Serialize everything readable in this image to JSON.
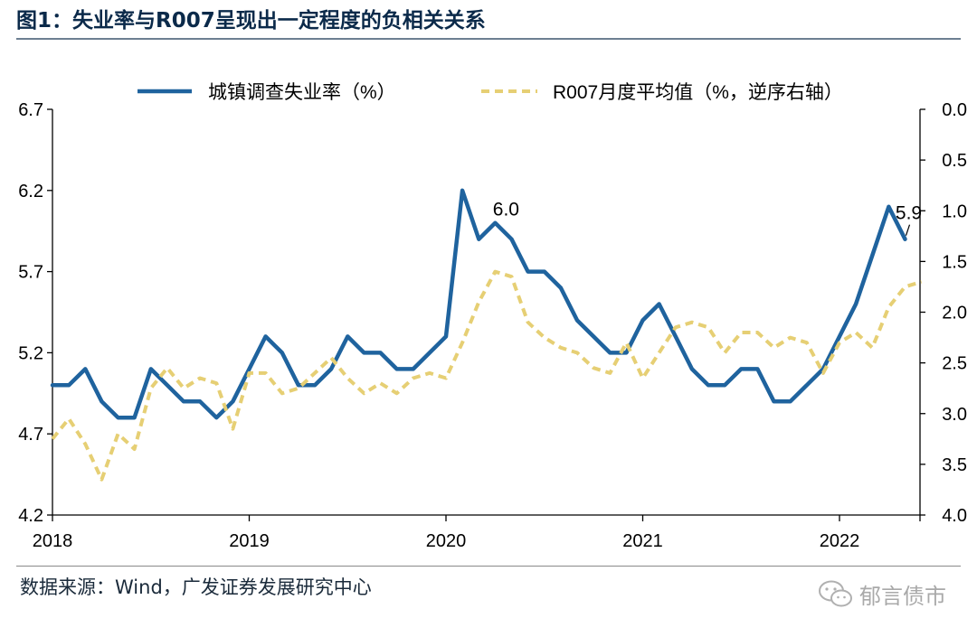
{
  "header": {
    "title": "图1：失业率与R007呈现出一定程度的负相关关系"
  },
  "footer": {
    "source": "数据来源：Wind，广发证券发展研究中心",
    "watermark": "郁言债市",
    "watermark_icon": "wechat-icon"
  },
  "colors": {
    "unemployment": "#1f639e",
    "r007": "#e6cf74",
    "title": "#0b2a4a"
  },
  "chart_data": {
    "type": "line",
    "legend_position": "top",
    "grid": false,
    "x_tick_labels": [
      "2018",
      "2019",
      "2020",
      "2021",
      "2022"
    ],
    "y_left": {
      "range": [
        4.2,
        6.7
      ],
      "tick_labels": [
        "6.7",
        "6.2",
        "5.7",
        "5.2",
        "4.7",
        "4.2"
      ]
    },
    "y_right": {
      "range": [
        0.0,
        4.0
      ],
      "inverted": true,
      "tick_labels": [
        "0.0",
        "0.5",
        "1.0",
        "1.5",
        "2.0",
        "2.5",
        "3.0",
        "3.5",
        "4.0"
      ]
    },
    "series": [
      {
        "name": "城镇调查失业率（%）",
        "axis": "left",
        "style": "solid",
        "x": [
          "2018-01",
          "2018-02",
          "2018-03",
          "2018-04",
          "2018-05",
          "2018-06",
          "2018-07",
          "2018-08",
          "2018-09",
          "2018-10",
          "2018-11",
          "2018-12",
          "2019-01",
          "2019-02",
          "2019-03",
          "2019-04",
          "2019-05",
          "2019-06",
          "2019-07",
          "2019-08",
          "2019-09",
          "2019-10",
          "2019-11",
          "2019-12",
          "2020-01",
          "2020-02",
          "2020-03",
          "2020-04",
          "2020-05",
          "2020-06",
          "2020-07",
          "2020-08",
          "2020-09",
          "2020-10",
          "2020-11",
          "2020-12",
          "2021-01",
          "2021-02",
          "2021-03",
          "2021-04",
          "2021-05",
          "2021-06",
          "2021-07",
          "2021-08",
          "2021-09",
          "2021-10",
          "2021-11",
          "2021-12",
          "2022-01",
          "2022-02",
          "2022-03",
          "2022-04",
          "2022-05"
        ],
        "values": [
          5.0,
          5.0,
          5.1,
          4.9,
          4.8,
          4.8,
          5.1,
          5.0,
          4.9,
          4.9,
          4.8,
          4.9,
          5.1,
          5.3,
          5.2,
          5.0,
          5.0,
          5.1,
          5.3,
          5.2,
          5.2,
          5.1,
          5.1,
          5.2,
          5.3,
          6.2,
          5.9,
          6.0,
          5.9,
          5.7,
          5.7,
          5.6,
          5.4,
          5.3,
          5.2,
          5.2,
          5.4,
          5.5,
          5.3,
          5.1,
          5.0,
          5.0,
          5.1,
          5.1,
          4.9,
          4.9,
          5.0,
          5.1,
          5.3,
          5.5,
          5.8,
          6.1,
          5.9
        ]
      },
      {
        "name": "R007月度平均值（%，逆序右轴）",
        "axis": "right",
        "style": "dashed",
        "x": [
          "2018-01",
          "2018-02",
          "2018-03",
          "2018-04",
          "2018-05",
          "2018-06",
          "2018-07",
          "2018-08",
          "2018-09",
          "2018-10",
          "2018-11",
          "2018-12",
          "2019-01",
          "2019-02",
          "2019-03",
          "2019-04",
          "2019-05",
          "2019-06",
          "2019-07",
          "2019-08",
          "2019-09",
          "2019-10",
          "2019-11",
          "2019-12",
          "2020-01",
          "2020-02",
          "2020-03",
          "2020-04",
          "2020-05",
          "2020-06",
          "2020-07",
          "2020-08",
          "2020-09",
          "2020-10",
          "2020-11",
          "2020-12",
          "2021-01",
          "2021-02",
          "2021-03",
          "2021-04",
          "2021-05",
          "2021-06",
          "2021-07",
          "2021-08",
          "2021-09",
          "2021-10",
          "2021-11",
          "2021-12",
          "2022-01",
          "2022-02",
          "2022-03",
          "2022-04",
          "2022-05",
          "2022-06"
        ],
        "values": [
          3.25,
          3.05,
          3.3,
          3.65,
          3.2,
          3.35,
          2.75,
          2.55,
          2.75,
          2.65,
          2.7,
          3.15,
          2.6,
          2.6,
          2.8,
          2.75,
          2.6,
          2.45,
          2.65,
          2.8,
          2.7,
          2.8,
          2.65,
          2.6,
          2.65,
          2.3,
          1.9,
          1.6,
          1.65,
          2.1,
          2.25,
          2.35,
          2.4,
          2.55,
          2.6,
          2.3,
          2.65,
          2.4,
          2.15,
          2.1,
          2.15,
          2.4,
          2.2,
          2.2,
          2.35,
          2.25,
          2.3,
          2.6,
          2.3,
          2.2,
          2.35,
          1.95,
          1.75,
          1.7
        ]
      }
    ],
    "annotations": [
      {
        "text": "6.0",
        "x": "2020-04",
        "y": 6.0
      },
      {
        "text": "5.9",
        "x": "2022-05",
        "y": 5.9
      }
    ]
  }
}
